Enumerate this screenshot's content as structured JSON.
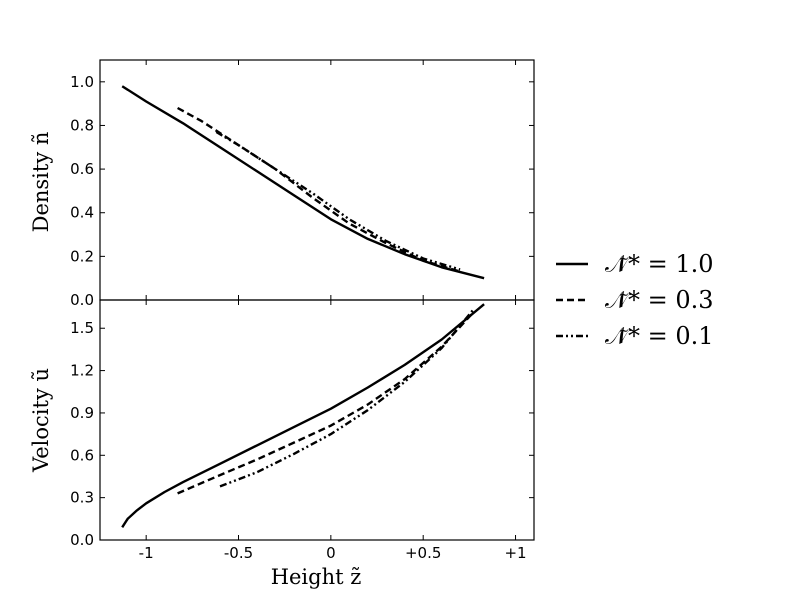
{
  "chart_data": [
    {
      "type": "line",
      "panel": "top",
      "ylabel": "Density  ñ",
      "xlabel": "",
      "xlim": [
        -1.25,
        1.1
      ],
      "ylim": [
        0.0,
        1.1
      ],
      "yticks": [
        0.0,
        0.2,
        0.4,
        0.6,
        0.8,
        1.0
      ],
      "ytick_labels": [
        "0.0",
        "0.2",
        "0.4",
        "0.6",
        "0.8",
        "1.0"
      ],
      "series": [
        {
          "name": "𝒩̃* = 1.0",
          "style": "solid",
          "x": [
            -1.13,
            -1.0,
            -0.8,
            -0.6,
            -0.4,
            -0.2,
            0.0,
            0.2,
            0.4,
            0.6,
            0.83
          ],
          "y": [
            0.98,
            0.91,
            0.81,
            0.7,
            0.59,
            0.48,
            0.37,
            0.28,
            0.21,
            0.15,
            0.1
          ]
        },
        {
          "name": "𝒩̃* = 0.3",
          "style": "dashed",
          "x": [
            -0.83,
            -0.7,
            -0.5,
            -0.3,
            -0.1,
            0.1,
            0.3,
            0.5,
            0.7
          ],
          "y": [
            0.88,
            0.82,
            0.71,
            0.6,
            0.47,
            0.35,
            0.26,
            0.18,
            0.13
          ]
        },
        {
          "name": "𝒩̃* = 0.1",
          "style": "dashdot",
          "x": [
            -0.62,
            -0.5,
            -0.3,
            -0.1,
            0.1,
            0.3,
            0.5,
            0.7
          ],
          "y": [
            0.77,
            0.71,
            0.6,
            0.49,
            0.37,
            0.27,
            0.19,
            0.14
          ]
        }
      ]
    },
    {
      "type": "line",
      "panel": "bottom",
      "ylabel": "Velocity  ũ",
      "xlabel": "Height  z̃",
      "xlim": [
        -1.25,
        1.1
      ],
      "ylim": [
        0.0,
        1.7
      ],
      "yticks": [
        0.0,
        0.3,
        0.6,
        0.9,
        1.2,
        1.5
      ],
      "ytick_labels": [
        "0.0",
        "0.3",
        "0.6",
        "0.9",
        "1.2",
        "1.5"
      ],
      "xticks": [
        -1.0,
        -0.5,
        0.0,
        0.5,
        1.0
      ],
      "xtick_labels": [
        "-1",
        "-0.5",
        "0",
        "+0.5",
        "+1"
      ],
      "series": [
        {
          "name": "𝒩̃* = 1.0",
          "style": "solid",
          "x": [
            -1.13,
            -1.1,
            -1.05,
            -1.0,
            -0.9,
            -0.8,
            -0.6,
            -0.4,
            -0.2,
            0.0,
            0.2,
            0.4,
            0.6,
            0.83
          ],
          "y": [
            0.09,
            0.15,
            0.21,
            0.26,
            0.34,
            0.41,
            0.54,
            0.67,
            0.8,
            0.93,
            1.08,
            1.24,
            1.42,
            1.67
          ]
        },
        {
          "name": "𝒩̃* = 0.3",
          "style": "dashed",
          "x": [
            -0.83,
            -0.6,
            -0.4,
            -0.2,
            0.0,
            0.2,
            0.4,
            0.6,
            0.77
          ],
          "y": [
            0.33,
            0.46,
            0.57,
            0.69,
            0.81,
            0.96,
            1.14,
            1.37,
            1.61
          ]
        },
        {
          "name": "𝒩̃* = 0.1",
          "style": "dashdot",
          "x": [
            -0.6,
            -0.4,
            -0.2,
            0.0,
            0.2,
            0.4,
            0.6,
            0.77
          ],
          "y": [
            0.38,
            0.48,
            0.61,
            0.75,
            0.92,
            1.12,
            1.36,
            1.63
          ]
        }
      ]
    }
  ],
  "legend": {
    "placement": "right",
    "entries": [
      {
        "label": "𝒩̃*  = 1.0",
        "style": "solid"
      },
      {
        "label": "𝒩̃*  = 0.3",
        "style": "dashed"
      },
      {
        "label": "𝒩̃*  = 0.1",
        "style": "dashdot"
      }
    ]
  },
  "colors": {
    "line": "#000000",
    "background": "#ffffff"
  }
}
